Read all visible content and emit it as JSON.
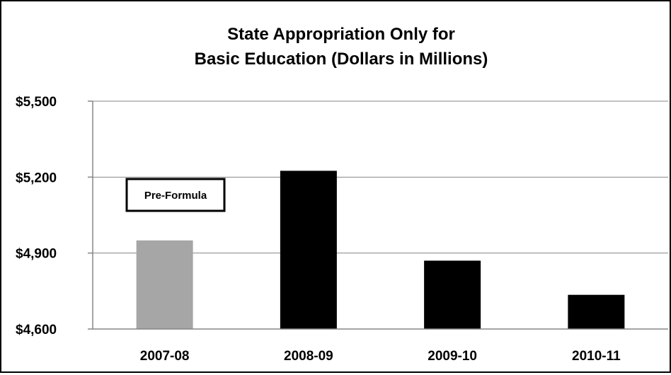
{
  "chart_data": {
    "type": "bar",
    "title_lines": [
      "State Appropriation Only for",
      "Basic Education (Dollars in Millions)"
    ],
    "categories": [
      "2007-08",
      "2008-09",
      "2009-10",
      "2010-11"
    ],
    "values": [
      4950,
      5225,
      4870,
      4735
    ],
    "bar_colors": [
      "#a6a6a6",
      "#000000",
      "#000000",
      "#000000"
    ],
    "ylim": [
      4600,
      5500
    ],
    "y_ticks": [
      4600,
      4900,
      5200,
      5500
    ],
    "y_tick_labels": [
      "$4,600",
      "$4,900",
      "$5,200",
      "$5,500"
    ],
    "grid": true,
    "annotation": {
      "text": "Pre-Formula"
    }
  }
}
